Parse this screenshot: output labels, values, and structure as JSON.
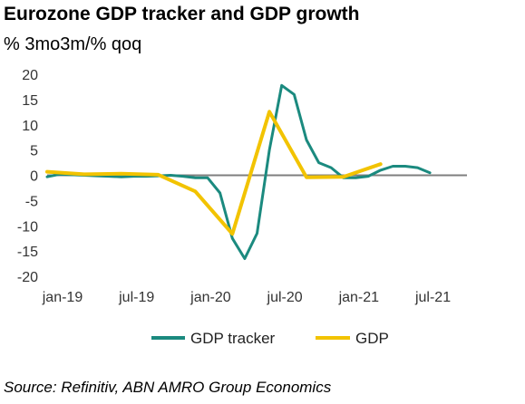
{
  "title": "Eurozone GDP tracker and GDP growth",
  "subtitle": "% 3mo3m/% qoq",
  "source": "Source: Refinitiv, ABN AMRO Group Economics",
  "chart_data": {
    "type": "line",
    "ylim": [
      -20,
      20
    ],
    "y_ticks": [
      20,
      15,
      10,
      5,
      0,
      -5,
      -10,
      -15,
      -20
    ],
    "x_ticks": [
      "jan-19",
      "jul-19",
      "jan-20",
      "jul-20",
      "jan-21",
      "jul-21"
    ],
    "legend_position": "bottom",
    "grid": false,
    "series": [
      {
        "name": "GDP tracker",
        "color": "#1b8a7f",
        "points": [
          [
            "2019-01",
            -0.3
          ],
          [
            "2019-02",
            0.2
          ],
          [
            "2019-03",
            0.1
          ],
          [
            "2019-04",
            0.0
          ],
          [
            "2019-05",
            -0.1
          ],
          [
            "2019-06",
            -0.2
          ],
          [
            "2019-07",
            -0.3
          ],
          [
            "2019-08",
            -0.2
          ],
          [
            "2019-09",
            -0.2
          ],
          [
            "2019-10",
            -0.1
          ],
          [
            "2019-11",
            0.0
          ],
          [
            "2019-12",
            -0.2
          ],
          [
            "2020-01",
            -0.5
          ],
          [
            "2020-02",
            -0.5
          ],
          [
            "2020-03",
            -3.5
          ],
          [
            "2020-04",
            -12.5
          ],
          [
            "2020-05",
            -16.5
          ],
          [
            "2020-06",
            -11.5
          ],
          [
            "2020-07",
            5.0
          ],
          [
            "2020-08",
            17.8
          ],
          [
            "2020-09",
            16.0
          ],
          [
            "2020-10",
            7.0
          ],
          [
            "2020-11",
            2.5
          ],
          [
            "2020-12",
            1.5
          ],
          [
            "2021-01",
            -0.5
          ],
          [
            "2021-02",
            -0.5
          ],
          [
            "2021-03",
            -0.2
          ],
          [
            "2021-04",
            1.0
          ],
          [
            "2021-05",
            1.8
          ],
          [
            "2021-06",
            1.8
          ],
          [
            "2021-07",
            1.5
          ],
          [
            "2021-08",
            0.5
          ]
        ]
      },
      {
        "name": "GDP",
        "color": "#f2c300",
        "points": [
          [
            "2019-01",
            0.7
          ],
          [
            "2019-04",
            0.2
          ],
          [
            "2019-07",
            0.3
          ],
          [
            "2019-10",
            0.1
          ],
          [
            "2020-01",
            -3.2
          ],
          [
            "2020-04",
            -11.6
          ],
          [
            "2020-07",
            12.6
          ],
          [
            "2020-10",
            -0.4
          ],
          [
            "2021-01",
            -0.3
          ],
          [
            "2021-04",
            2.2
          ]
        ]
      }
    ]
  }
}
